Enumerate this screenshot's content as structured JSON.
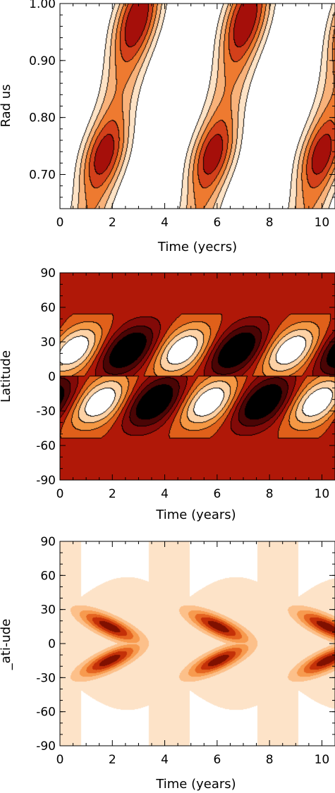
{
  "chart_data": [
    {
      "type": "heatmap",
      "plot_style": "filled contour with black contour lines",
      "xlabel": "Time (yecrs)",
      "ylabel": "Rad us",
      "xlim": [
        0,
        10.5
      ],
      "ylim": [
        0.64,
        1.0
      ],
      "x_ticks": [
        "0",
        "2",
        "4",
        "6",
        "8",
        "10"
      ],
      "y_ticks": [
        "0.70",
        "0.80",
        "0.90",
        "1.00"
      ],
      "y_tick_values": [
        0.7,
        0.8,
        0.9,
        1.0
      ],
      "colormap": [
        "#ffffff",
        "#fde3c6",
        "#f8b27a",
        "#ee7a30",
        "#d3401a",
        "#a50f0a"
      ]
    },
    {
      "type": "heatmap",
      "plot_style": "filled contour with black contour lines",
      "xlabel": "Time (years)",
      "ylabel": "Latitude",
      "xlim": [
        0,
        10.5
      ],
      "ylim": [
        -90,
        90
      ],
      "x_ticks": [
        "0",
        "2",
        "4",
        "6",
        "8",
        "10"
      ],
      "y_ticks": [
        "90",
        "60",
        "30",
        "0",
        "-30",
        "-60",
        "-90"
      ],
      "y_tick_values": [
        90,
        60,
        30,
        0,
        -30,
        -60,
        -90
      ],
      "colormap": [
        "#000000",
        "#4a0505",
        "#820a08",
        "#b01808",
        "#e0601a",
        "#f59844",
        "#fdd2a6",
        "#ffffff"
      ],
      "background_color": "#b01808"
    },
    {
      "type": "heatmap",
      "plot_style": "filled contour",
      "xlabel": "Time (years)",
      "ylabel": "_ati-ude",
      "xlim": [
        0,
        10.5
      ],
      "ylim": [
        -90,
        90
      ],
      "x_ticks": [
        "0",
        "2",
        "4",
        "6",
        "8",
        "10"
      ],
      "y_ticks": [
        "90",
        "60",
        "30",
        "0",
        "-30",
        "-60",
        "-90"
      ],
      "y_tick_values": [
        90,
        60,
        30,
        0,
        -30,
        -60,
        -90
      ],
      "colormap": [
        "#ffffff",
        "#fde3c8",
        "#fcc08a",
        "#f79a4e",
        "#e56420",
        "#c43008",
        "#801000"
      ],
      "background_color": "#fde3c8"
    }
  ]
}
